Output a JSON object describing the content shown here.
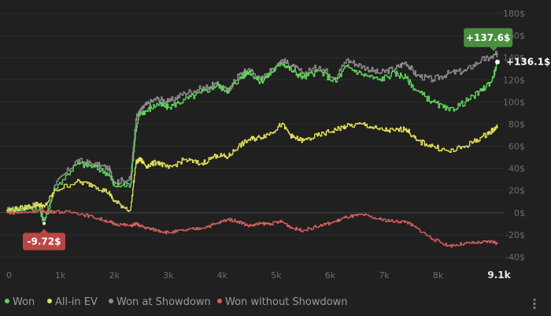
{
  "chart_data": {
    "type": "line",
    "xlabel": "",
    "ylabel": "",
    "xlim": [
      0,
      9100
    ],
    "ylim": [
      -40,
      180
    ],
    "x_ticks": [
      {
        "value": 0,
        "label": "0"
      },
      {
        "value": 1000,
        "label": "1k"
      },
      {
        "value": 2000,
        "label": "2k"
      },
      {
        "value": 3000,
        "label": "3k"
      },
      {
        "value": 4000,
        "label": "4k"
      },
      {
        "value": 5000,
        "label": "5k"
      },
      {
        "value": 6000,
        "label": "6k"
      },
      {
        "value": 7000,
        "label": "7k"
      },
      {
        "value": 8000,
        "label": "8k"
      },
      {
        "value": 9100,
        "label": "9.1k"
      }
    ],
    "y_ticks": [
      {
        "value": 180,
        "label": "180$"
      },
      {
        "value": 160,
        "label": "160$"
      },
      {
        "value": 140,
        "label": "140$"
      },
      {
        "value": 120,
        "label": "120$"
      },
      {
        "value": 100,
        "label": "100$"
      },
      {
        "value": 80,
        "label": "80$"
      },
      {
        "value": 60,
        "label": "60$"
      },
      {
        "value": 40,
        "label": "40$"
      },
      {
        "value": 20,
        "label": "20$"
      },
      {
        "value": 0,
        "label": "0$"
      },
      {
        "value": -20,
        "label": "-20$"
      },
      {
        "value": -40,
        "label": "-40$"
      }
    ],
    "grid": true,
    "legend_position": "bottom-left",
    "series": [
      {
        "name": "Won at Showdown",
        "color": "#8f8f8f",
        "x": [
          0,
          300,
          600,
          700,
          900,
          1300,
          1600,
          1900,
          2000,
          2300,
          2400,
          2480,
          2600,
          2800,
          3000,
          3300,
          3600,
          3900,
          4100,
          4300,
          4500,
          4700,
          4900,
          5100,
          5300,
          5500,
          5800,
          6100,
          6300,
          6600,
          6900,
          7200,
          7400,
          7600,
          7900,
          8200,
          8500,
          8800,
          9000,
          9100
        ],
        "y": [
          2,
          4,
          8,
          -8,
          25,
          47,
          44,
          40,
          28,
          30,
          85,
          92,
          98,
          103,
          100,
          108,
          112,
          116,
          110,
          124,
          130,
          120,
          128,
          138,
          132,
          126,
          132,
          122,
          138,
          132,
          126,
          130,
          136,
          124,
          120,
          126,
          128,
          138,
          140,
          144
        ]
      },
      {
        "name": "Won",
        "color": "#5fd35b",
        "x": [
          0,
          300,
          600,
          700,
          900,
          1300,
          1600,
          1900,
          2000,
          2300,
          2400,
          2480,
          2600,
          2800,
          3000,
          3300,
          3600,
          3900,
          4100,
          4300,
          4500,
          4700,
          4900,
          5100,
          5300,
          5500,
          5800,
          6100,
          6300,
          6600,
          6900,
          7200,
          7400,
          7600,
          7900,
          8200,
          8500,
          8800,
          9000,
          9100
        ],
        "y": [
          2,
          4,
          6,
          -9.72,
          22,
          44,
          42,
          35,
          24,
          25,
          75,
          90,
          92,
          98,
          95,
          102,
          108,
          115,
          110,
          120,
          128,
          118,
          126,
          136,
          128,
          122,
          128,
          118,
          132,
          125,
          120,
          126,
          122,
          110,
          100,
          92,
          100,
          110,
          120,
          136.1
        ]
      },
      {
        "name": "All-in EV",
        "color": "#e6e05a",
        "x": [
          0,
          300,
          600,
          700,
          900,
          1300,
          1600,
          1900,
          2000,
          2300,
          2400,
          2480,
          2600,
          2800,
          3000,
          3300,
          3600,
          3900,
          4100,
          4300,
          4500,
          4700,
          4900,
          5100,
          5300,
          5500,
          5800,
          6100,
          6300,
          6600,
          6900,
          7200,
          7400,
          7600,
          7900,
          8200,
          8500,
          8800,
          9000,
          9100
        ],
        "y": [
          2,
          4,
          8,
          5,
          20,
          28,
          25,
          18,
          10,
          2,
          45,
          48,
          42,
          46,
          40,
          48,
          44,
          52,
          50,
          60,
          66,
          68,
          72,
          80,
          68,
          65,
          70,
          75,
          78,
          80,
          75,
          74,
          76,
          65,
          60,
          55,
          60,
          68,
          74,
          78
        ]
      },
      {
        "name": "Won without Showdown",
        "color": "#d75f5f",
        "x": [
          0,
          300,
          600,
          700,
          900,
          1300,
          1600,
          1900,
          2000,
          2300,
          2400,
          2480,
          2600,
          2800,
          3000,
          3300,
          3600,
          3900,
          4100,
          4300,
          4500,
          4700,
          4900,
          5100,
          5300,
          5500,
          5800,
          6100,
          6300,
          6600,
          6900,
          7200,
          7400,
          7600,
          7900,
          8200,
          8500,
          8800,
          9000,
          9100
        ],
        "y": [
          0,
          0,
          2,
          1,
          1,
          0,
          -4,
          -8,
          -10,
          -12,
          -10,
          -12,
          -14,
          -16,
          -18,
          -16,
          -14,
          -10,
          -6,
          -8,
          -12,
          -10,
          -10,
          -8,
          -14,
          -16,
          -12,
          -8,
          -4,
          -2,
          -6,
          -8,
          -8,
          -14,
          -24,
          -30,
          -28,
          -27,
          -26,
          -28
        ]
      }
    ],
    "annotations": {
      "min_badge": {
        "label": "-9.72$",
        "color": "#b94646",
        "x": 700,
        "y": -9.72
      },
      "max_badge": {
        "label": "+137.6$",
        "color": "#4a8f3f",
        "x": 9030,
        "y": 146
      },
      "end_marker": {
        "label": "+136.1$",
        "x": 9100,
        "y": 136.1
      }
    }
  }
}
